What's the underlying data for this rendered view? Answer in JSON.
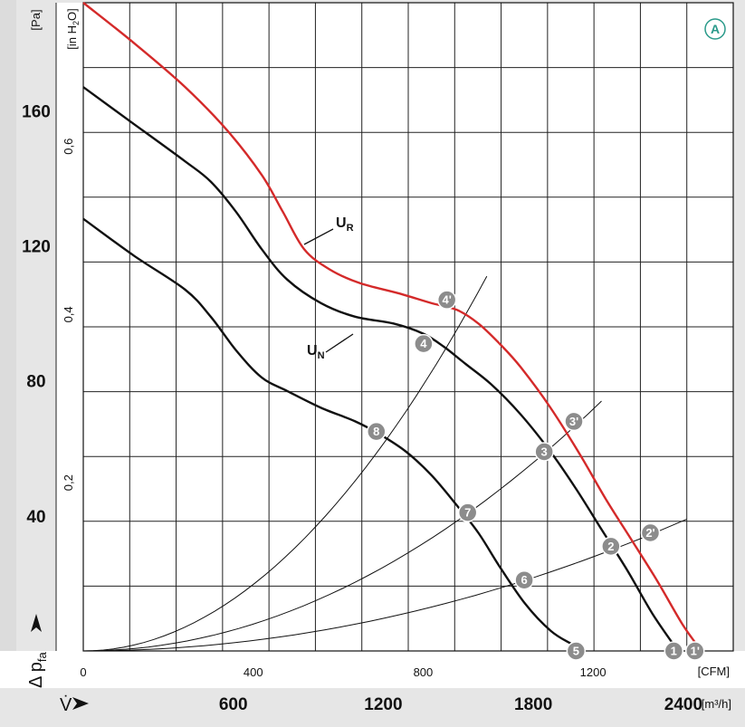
{
  "chart_data": {
    "type": "line",
    "badge": "A",
    "yaxis_left": {
      "label": "Δ p",
      "label_sub": "fa",
      "unit": "[Pa]",
      "ticks": [
        {
          "value": 40,
          "label": "40"
        },
        {
          "value": 80,
          "label": "80"
        },
        {
          "value": 120,
          "label": "120"
        },
        {
          "value": 160,
          "label": "160"
        }
      ],
      "range": [
        0,
        192
      ]
    },
    "yaxis_inner": {
      "unit": "[in H",
      "unit_sub": "2",
      "unit_end": "O]",
      "ticks": [
        {
          "value": 0.2,
          "label": "0,2"
        },
        {
          "value": 0.4,
          "label": "0,4"
        },
        {
          "value": 0.6,
          "label": "0,6"
        }
      ]
    },
    "xaxis_cfm": {
      "unit": "[CFM]",
      "ticks": [
        {
          "value": 0,
          "label": "0"
        },
        {
          "value": 400,
          "label": "400"
        },
        {
          "value": 800,
          "label": "800"
        },
        {
          "value": 1200,
          "label": "1200"
        }
      ],
      "range": [
        0,
        1530
      ]
    },
    "xaxis_m3h": {
      "label": "V̇",
      "unit": "[m³/h]",
      "ticks": [
        {
          "value": 600,
          "label": "600"
        },
        {
          "value": 1200,
          "label": "1200"
        },
        {
          "value": 1800,
          "label": "1800"
        },
        {
          "value": 2400,
          "label": "2400"
        }
      ]
    },
    "curves_labels": {
      "ur": "U",
      "ur_sub": "R",
      "un": "U",
      "un_sub": "N"
    },
    "series": [
      {
        "id": "UR",
        "color": "#d42a2a",
        "x": [
          0,
          120,
          240,
          340,
          420,
          470,
          520,
          580,
          650,
          740,
          820,
          880,
          930,
          980,
          1030,
          1100,
          1170,
          1230,
          1290,
          1350,
          1410,
          1455
        ],
        "y": [
          192,
          180,
          167,
          154,
          141,
          130,
          119,
          113,
          109,
          106,
          103,
          101,
          97,
          91,
          84,
          72,
          58,
          45,
          33,
          21,
          8,
          0
        ]
      },
      {
        "id": "UN_high",
        "color": "#111111",
        "x": [
          0,
          120,
          240,
          300,
          360,
          420,
          480,
          560,
          640,
          730,
          800,
          850,
          900,
          960,
          1030,
          1100,
          1160,
          1220,
          1280,
          1340,
          1400
        ],
        "y": [
          167,
          156,
          145,
          139,
          130,
          119,
          110,
          103,
          99,
          97,
          94,
          90,
          85,
          79,
          70,
          59,
          48,
          36,
          24,
          11,
          0
        ]
      },
      {
        "id": "UN_low",
        "color": "#111111",
        "x": [
          0,
          120,
          240,
          300,
          360,
          420,
          480,
          560,
          640,
          700,
          760,
          820,
          880,
          930,
          980,
          1040,
          1100,
          1150,
          1180
        ],
        "y": [
          128,
          117,
          107,
          99,
          89,
          81,
          77,
          72,
          68,
          64,
          59,
          52,
          43,
          35,
          25,
          14,
          6,
          2,
          0
        ]
      }
    ],
    "system_curves": [
      {
        "id": "sys-8",
        "x_end": 950,
        "y_end": 111
      },
      {
        "id": "sys-7",
        "x_end": 1220,
        "y_end": 74
      },
      {
        "id": "sys-6",
        "x_end": 1420,
        "y_end": 39
      }
    ],
    "points": [
      {
        "label": "1'",
        "x": 1440,
        "y": 0
      },
      {
        "label": "1",
        "x": 1390,
        "y": 0
      },
      {
        "label": "5",
        "x": 1160,
        "y": 0
      },
      {
        "label": "2'",
        "x": 1335,
        "y": 35
      },
      {
        "label": "2",
        "x": 1242,
        "y": 31
      },
      {
        "label": "6",
        "x": 1038,
        "y": 21
      },
      {
        "label": "3'",
        "x": 1155,
        "y": 68
      },
      {
        "label": "3",
        "x": 1085,
        "y": 59
      },
      {
        "label": "7",
        "x": 905,
        "y": 41
      },
      {
        "label": "4'",
        "x": 856,
        "y": 104
      },
      {
        "label": "4",
        "x": 801,
        "y": 91
      },
      {
        "label": "8",
        "x": 690,
        "y": 65
      }
    ]
  }
}
